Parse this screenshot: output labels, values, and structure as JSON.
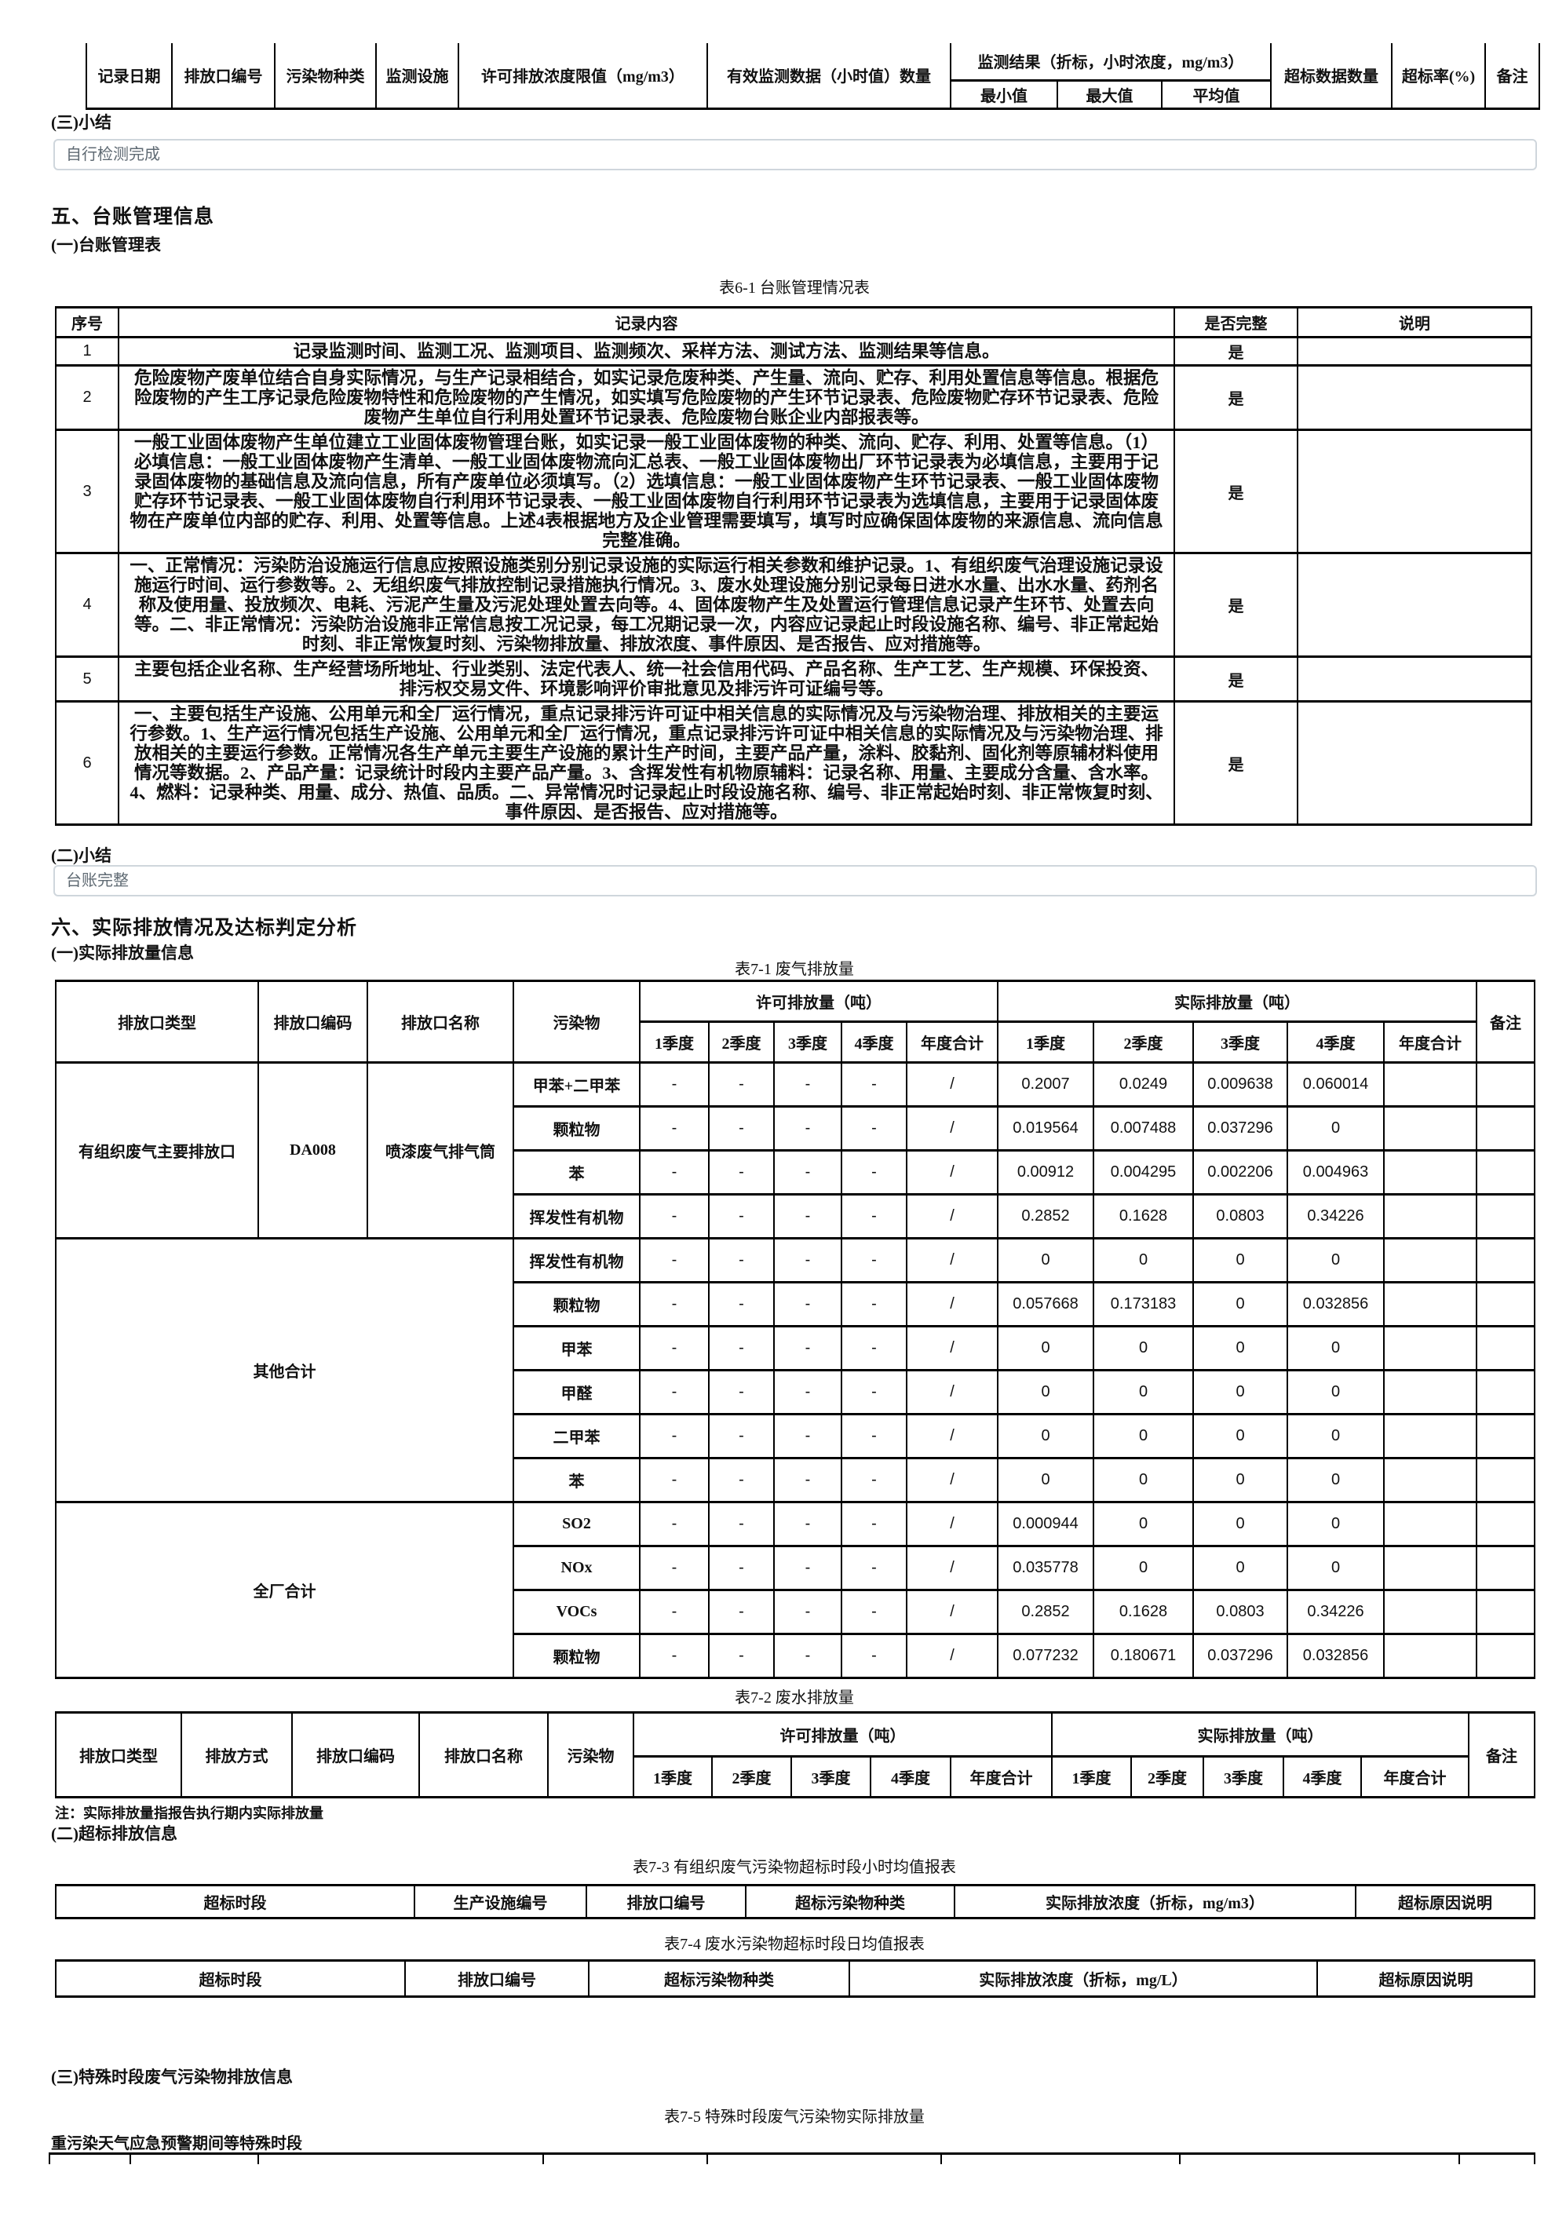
{
  "page": {
    "section3_summary_heading": "(三)小结",
    "section3_summary_text": "自行检测完成",
    "section5_heading": "五、台账管理信息",
    "section5_sub": "(一)台账管理表",
    "table61_caption": "表6-1 台账管理情况表",
    "section5_summary_heading": "(二)小结",
    "section5_summary_text": "台账完整",
    "section6_heading": "六、实际排放情况及达标判定分析",
    "section6_sub1": "(一)实际排放量信息",
    "table71_caption": "表7-1 废气排放量",
    "table72_caption": "表7-2 废水排放量",
    "table72_note": "注：实际排放量指报告执行期内实际排放量",
    "section6_sub2": "(二)超标排放信息",
    "table73_caption": "表7-3 有组织废气污染物超标时段小时均值报表",
    "table74_caption": "表7-4 废水污染物超标时段日均值报表",
    "section6_sub3": "(三)特殊时段废气污染物排放信息",
    "table75_caption": "表7-5 特殊时段废气污染物实际排放量",
    "table75_label": "重污染天气应急预警期间等特殊时段"
  },
  "colors": {
    "text": "#111111",
    "table_border": "#000000",
    "summary_box_border": "#cfd6dc",
    "summary_box_text": "#5f6a73"
  },
  "tables": {
    "monitoring": {
      "cols": [
        109,
        131,
        129,
        105,
        317,
        310,
        136,
        133,
        139,
        154,
        119,
        69
      ],
      "head": [
        [
          {
            "t": "记录日期",
            "rs": 2
          },
          {
            "t": "排放口编号",
            "rs": 2
          },
          {
            "t": "污染物种类",
            "rs": 2
          },
          {
            "t": "监测设施",
            "rs": 2
          },
          {
            "t": "许可排放浓度限值（mg/m3）",
            "rs": 2
          },
          {
            "t": "有效监测数据（小时值）数量",
            "rs": 2
          },
          {
            "t": "监测结果（折标，小时浓度，mg/m3）",
            "cs": 3
          },
          {
            "t": "超标数据数量",
            "rs": 2
          },
          {
            "t": "超标率(%)",
            "rs": 2
          },
          {
            "t": "备注",
            "rs": 2
          }
        ],
        [
          "最小值",
          "最大值",
          "平均值"
        ]
      ]
    },
    "t61": {
      "cols": [
        80,
        1345,
        157,
        298
      ],
      "head": [
        [
          "序号",
          "记录内容",
          "是否完整",
          "说明"
        ]
      ],
      "body": [
        [
          "1",
          {
            "t": "记录监测时间、监测工况、监测项目、监测频次、采样方法、测试方法、监测结果等信息。",
            "c": "long"
          },
          "是",
          ""
        ],
        [
          "2",
          {
            "t": "危险废物产废单位结合自身实际情况，与生产记录相结合，如实记录危废种类、产生量、流向、贮存、利用处置信息等信息。根据危险废物的产生工序记录危险废物特性和危险废物的产生情况，如实填写危险废物的产生环节记录表、危险废物贮存环节记录表、危险废物产生单位自行利用处置环节记录表、危险废物台账企业内部报表等。",
            "c": "long"
          },
          "是",
          ""
        ],
        [
          "3",
          {
            "t": "一般工业固体废物产生单位建立工业固体废物管理台账，如实记录一般工业固体废物的种类、流向、贮存、利用、处置等信息。（1）必填信息：一般工业固体废物产生清单、一般工业固体废物流向汇总表、一般工业固体废物出厂环节记录表为必填信息，主要用于记录固体废物的基础信息及流向信息，所有产废单位必须填写。（2）选填信息：一般工业固体废物产生环节记录表、一般工业固体废物贮存环节记录表、一般工业固体废物自行利用环节记录表、一般工业固体废物自行利用环节记录表为选填信息，主要用于记录固体废物在产废单位内部的贮存、利用、处置等信息。上述4表根据地方及企业管理需要填写，填写时应确保固体废物的来源信息、流向信息完整准确。",
            "c": "long"
          },
          "是",
          ""
        ],
        [
          "4",
          {
            "t": "一、正常情况：污染防治设施运行信息应按照设施类别分别记录设施的实际运行相关参数和维护记录。1、有组织废气治理设施记录设施运行时间、运行参数等。2、无组织废气排放控制记录措施执行情况。3、废水处理设施分别记录每日进水水量、出水水量、药剂名称及使用量、投放频次、电耗、污泥产生量及污泥处理处置去向等。4、固体废物产生及处置运行管理信息记录产生环节、处置去向等。二、非正常情况：污染防治设施非正常信息按工况记录，每工况期记录一次，内容应记录起止时段设施名称、编号、非正常起始时刻、非正常恢复时刻、污染物排放量、排放浓度、事件原因、是否报告、应对措施等。",
            "c": "long"
          },
          "是",
          ""
        ],
        [
          "5",
          {
            "t": "主要包括企业名称、生产经营场所地址、行业类别、法定代表人、统一社会信用代码、产品名称、生产工艺、生产规模、环保投资、排污权交易文件、环境影响评价审批意见及排污许可证编号等。",
            "c": "long"
          },
          "是",
          ""
        ],
        [
          "6",
          {
            "t": "一、主要包括生产设施、公用单元和全厂运行情况，重点记录排污许可证中相关信息的实际情况及与污染物治理、排放相关的主要运行参数。1、生产运行情况包括生产设施、公用单元和全厂运行情况，重点记录排污许可证中相关信息的实际情况及与污染物治理、排放相关的主要运行参数。正常情况各生产单元主要生产设施的累计生产时间，主要产品产量，涂料、胶黏剂、固化剂等原辅材料使用情况等数据。2、产品产量：记录统计时段内主要产品产量。3、含挥发性有机物原辅料：记录名称、用量、主要成分含量、含水率。4、燃料：记录种类、用量、成分、热值、品质。二、异常情况时记录起止时段设施名称、编号、非正常起始时刻、非正常恢复时刻、事件原因、是否报告、应对措施等。",
            "c": "long"
          },
          "是",
          ""
        ]
      ]
    },
    "t71": {
      "cols": [
        258,
        139,
        186,
        161,
        88,
        83,
        86,
        83,
        116,
        122,
        127,
        120,
        123,
        118,
        74
      ],
      "head": [
        [
          {
            "t": "排放口类型",
            "rs": 2
          },
          {
            "t": "排放口编码",
            "rs": 2
          },
          {
            "t": "排放口名称",
            "rs": 2
          },
          {
            "t": "污染物",
            "rs": 2
          },
          {
            "t": "许可排放量（吨）",
            "cs": 5
          },
          {
            "t": "实际排放量（吨）",
            "cs": 5
          },
          {
            "t": "备注",
            "rs": 2
          }
        ],
        [
          "1季度",
          "2季度",
          "3季度",
          "4季度",
          "年度合计",
          "1季度",
          "2季度",
          "3季度",
          "4季度",
          "年度合计"
        ]
      ],
      "body": [
        [
          {
            "t": "有组织废气主要排放口",
            "rs": 4
          },
          {
            "t": "DA008",
            "rs": 4
          },
          {
            "t": "喷漆废气排气筒",
            "rs": 4
          },
          "甲苯+二甲苯",
          "-",
          "-",
          "-",
          "-",
          "/",
          "0.2007",
          "0.0249",
          "0.009638",
          "0.060014",
          "",
          ""
        ],
        [
          "颗粒物",
          "-",
          "-",
          "-",
          "-",
          "/",
          "0.019564",
          "0.007488",
          "0.037296",
          "0",
          "",
          ""
        ],
        [
          "苯",
          "-",
          "-",
          "-",
          "-",
          "/",
          "0.00912",
          "0.004295",
          "0.002206",
          "0.004963",
          "",
          ""
        ],
        [
          "挥发性有机物",
          "-",
          "-",
          "-",
          "-",
          "/",
          "0.2852",
          "0.1628",
          "0.0803",
          "0.34226",
          "",
          ""
        ],
        [
          {
            "t": "其他合计",
            "rs": 6,
            "cs": 3
          },
          "挥发性有机物",
          "-",
          "-",
          "-",
          "-",
          "/",
          "0",
          "0",
          "0",
          "0",
          "",
          ""
        ],
        [
          "颗粒物",
          "-",
          "-",
          "-",
          "-",
          "/",
          "0.057668",
          "0.173183",
          "0",
          "0.032856",
          "",
          ""
        ],
        [
          "甲苯",
          "-",
          "-",
          "-",
          "-",
          "/",
          "0",
          "0",
          "0",
          "0",
          "",
          ""
        ],
        [
          "甲醛",
          "-",
          "-",
          "-",
          "-",
          "/",
          "0",
          "0",
          "0",
          "0",
          "",
          ""
        ],
        [
          "二甲苯",
          "-",
          "-",
          "-",
          "-",
          "/",
          "0",
          "0",
          "0",
          "0",
          "",
          ""
        ],
        [
          "苯",
          "-",
          "-",
          "-",
          "-",
          "/",
          "0",
          "0",
          "0",
          "0",
          "",
          ""
        ],
        [
          {
            "t": "全厂合计",
            "rs": 4,
            "cs": 3
          },
          "SO2",
          "-",
          "-",
          "-",
          "-",
          "/",
          "0.000944",
          "0",
          "0",
          "0",
          "",
          ""
        ],
        [
          "NOx",
          "-",
          "-",
          "-",
          "-",
          "/",
          "0.035778",
          "0",
          "0",
          "0",
          "",
          ""
        ],
        [
          "VOCs",
          "-",
          "-",
          "-",
          "-",
          "/",
          "0.2852",
          "0.1628",
          "0.0803",
          "0.34226",
          "",
          ""
        ],
        [
          "颗粒物",
          "-",
          "-",
          "-",
          "-",
          "/",
          "0.077232",
          "0.180671",
          "0.037296",
          "0.032856",
          "",
          ""
        ]
      ]
    },
    "t72": {
      "cols": [
        160,
        141,
        162,
        164,
        109,
        100,
        101,
        101,
        102,
        129,
        101,
        92,
        102,
        99,
        137,
        84
      ],
      "head": [
        [
          {
            "t": "排放口类型",
            "rs": 2
          },
          {
            "t": "排放方式",
            "rs": 2
          },
          {
            "t": "排放口编码",
            "rs": 2
          },
          {
            "t": "排放口名称",
            "rs": 2
          },
          {
            "t": "污染物",
            "rs": 2
          },
          {
            "t": "许可排放量（吨）",
            "cs": 5
          },
          {
            "t": "实际排放量（吨）",
            "cs": 5
          },
          {
            "t": "备注",
            "rs": 2
          }
        ],
        [
          "1季度",
          "2季度",
          "3季度",
          "4季度",
          "年度合计",
          "1季度",
          "2季度",
          "3季度",
          "4季度",
          "年度合计"
        ]
      ]
    },
    "t73": {
      "cols": [
        457,
        219,
        203,
        266,
        511,
        228
      ],
      "head": [
        [
          "超标时段",
          "生产设施编号",
          "排放口编号",
          "超标污染物种类",
          "实际排放浓度（折标，mg/m3）",
          "超标原因说明"
        ]
      ]
    },
    "t74": {
      "cols": [
        445,
        234,
        332,
        596,
        277
      ],
      "head": [
        [
          "超标时段",
          "排放口编号",
          "超标污染物种类",
          "实际排放浓度（折标，mg/L）",
          "超标原因说明"
        ]
      ]
    },
    "t75": {
      "cols": [
        103,
        163,
        363,
        209,
        298,
        304,
        356,
        96
      ],
      "body": [
        [
          "",
          "",
          "",
          "",
          "",
          "",
          "",
          ""
        ]
      ]
    }
  }
}
